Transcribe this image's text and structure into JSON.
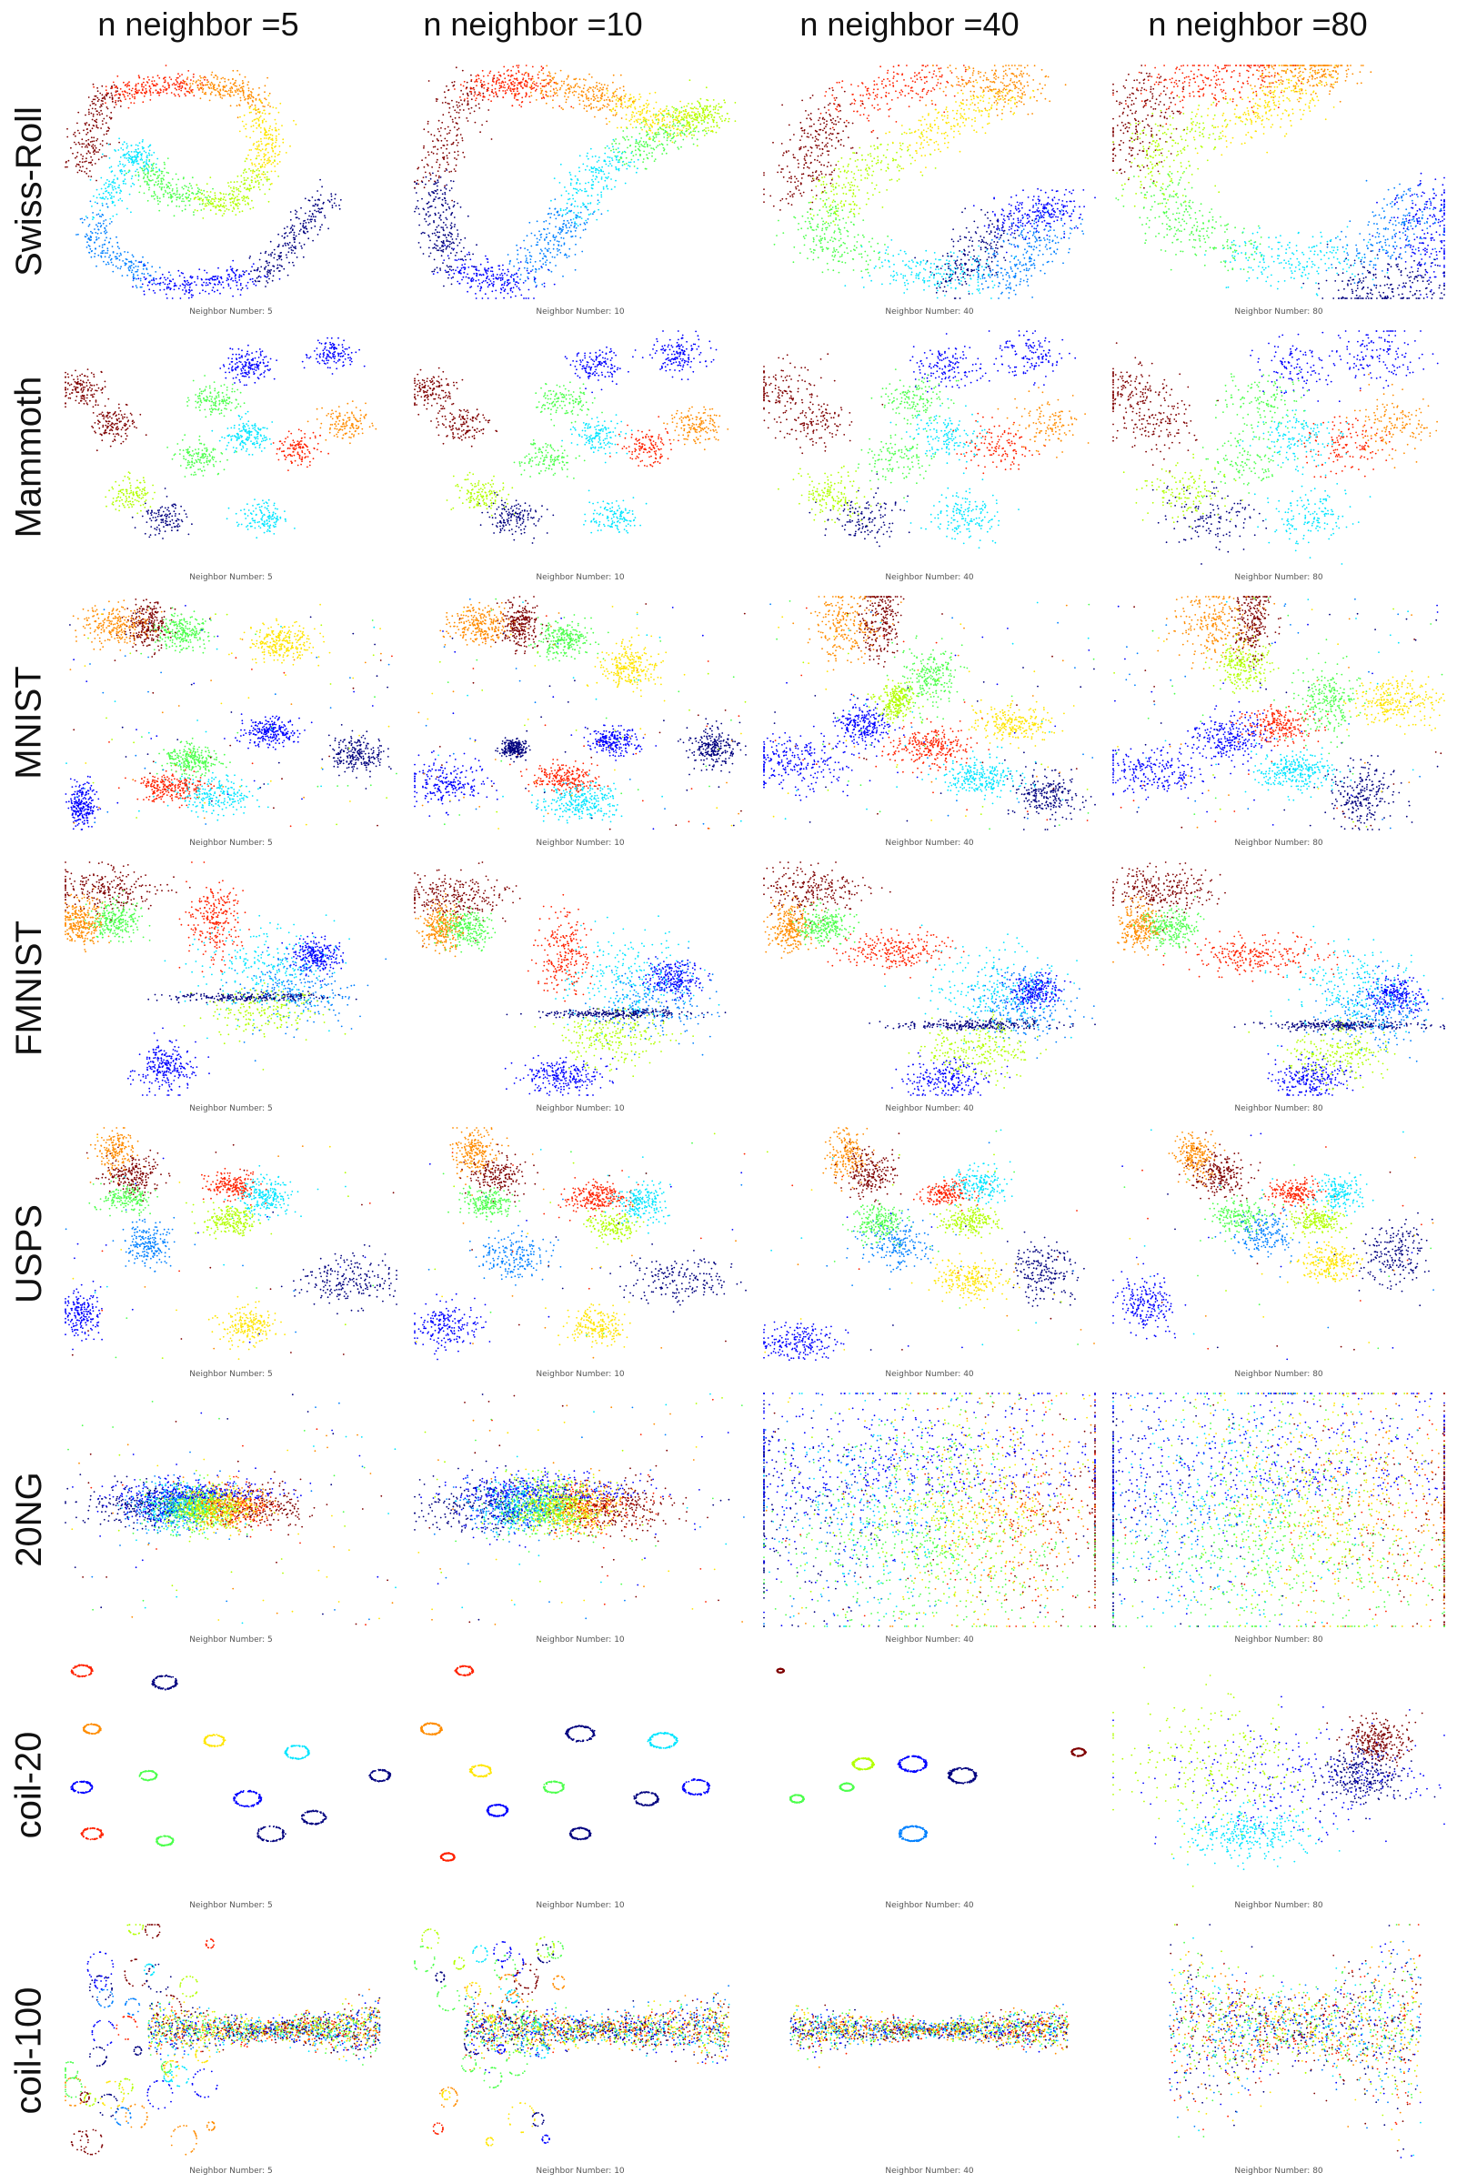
{
  "figure": {
    "column_headers": [
      "n neighbor =5",
      "n neighbor =10",
      "n neighbor =40",
      "n neighbor =80"
    ],
    "row_labels": [
      "Swiss-Roll",
      "Mammoth",
      "MNIST",
      "FMNIST",
      "USPS",
      "20NG",
      "coil-20",
      "coil-100"
    ],
    "panel_captions": [
      "Neighbor Number: 5",
      "Neighbor Number: 10",
      "Neighbor Number: 40",
      "Neighbor Number: 80"
    ]
  },
  "chart_data": {
    "type": "scatter",
    "colormap": "jet",
    "palette": [
      "#00007f",
      "#0000ff",
      "#0080ff",
      "#00e5ff",
      "#4dff4d",
      "#b2ff00",
      "#ffe500",
      "#ff8c00",
      "#ff2200",
      "#7f0000"
    ],
    "datasets": [
      "Swiss-Roll",
      "Mammoth",
      "MNIST",
      "FMNIST",
      "USPS",
      "20NG",
      "coil-20",
      "coil-100"
    ],
    "n_neighbors": [
      5,
      10,
      40,
      80
    ],
    "axes_visible": false,
    "grid": false
  }
}
